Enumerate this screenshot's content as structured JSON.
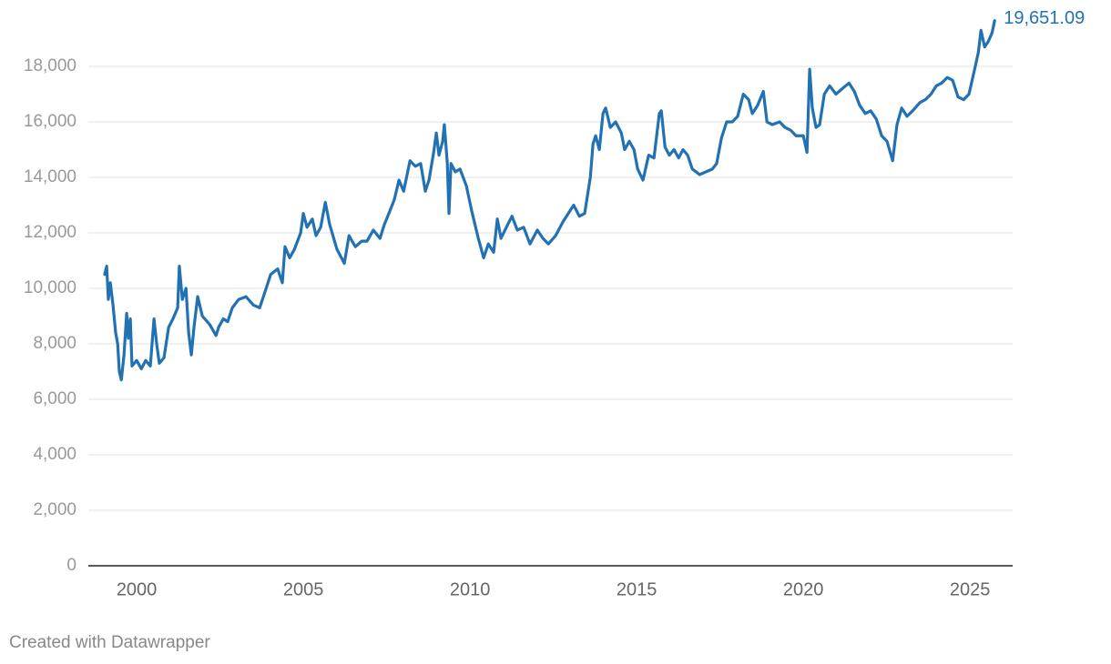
{
  "chart_data": {
    "type": "line",
    "series": [
      {
        "color": "#2271b3",
        "x": [
          1999.04,
          1999.1,
          1999.15,
          1999.21,
          1999.29,
          1999.37,
          1999.43,
          1999.48,
          1999.54,
          1999.62,
          1999.7,
          1999.75,
          1999.81,
          1999.86,
          2000.0,
          2000.14,
          2000.27,
          2000.41,
          2000.52,
          2000.6,
          2000.68,
          2000.82,
          2000.96,
          2001.09,
          2001.23,
          2001.28,
          2001.37,
          2001.48,
          2001.56,
          2001.64,
          2001.72,
          2001.83,
          2001.97,
          2002.19,
          2002.38,
          2002.46,
          2002.6,
          2002.73,
          2002.87,
          2003.06,
          2003.28,
          2003.5,
          2003.69,
          2003.83,
          2004.02,
          2004.23,
          2004.37,
          2004.45,
          2004.59,
          2004.73,
          2004.92,
          2005.0,
          2005.11,
          2005.27,
          2005.38,
          2005.52,
          2005.66,
          2005.79,
          2006.01,
          2006.23,
          2006.37,
          2006.56,
          2006.75,
          2006.91,
          2007.1,
          2007.3,
          2007.43,
          2007.6,
          2007.73,
          2007.87,
          2008.01,
          2008.2,
          2008.36,
          2008.52,
          2008.66,
          2008.77,
          2008.91,
          2008.99,
          2009.07,
          2009.18,
          2009.23,
          2009.32,
          2009.37,
          2009.43,
          2009.56,
          2009.7,
          2009.89,
          2010.05,
          2010.25,
          2010.41,
          2010.55,
          2010.71,
          2010.82,
          2010.93,
          2011.09,
          2011.26,
          2011.42,
          2011.61,
          2011.8,
          2012.02,
          2012.19,
          2012.35,
          2012.57,
          2012.79,
          2012.95,
          2013.11,
          2013.28,
          2013.44,
          2013.61,
          2013.69,
          2013.77,
          2013.88,
          2013.99,
          2014.07,
          2014.21,
          2014.37,
          2014.54,
          2014.64,
          2014.78,
          2014.92,
          2015.03,
          2015.19,
          2015.36,
          2015.52,
          2015.68,
          2015.74,
          2015.85,
          2015.98,
          2016.12,
          2016.26,
          2016.39,
          2016.53,
          2016.67,
          2016.89,
          2017.08,
          2017.27,
          2017.4,
          2017.54,
          2017.7,
          2017.87,
          2018.03,
          2018.2,
          2018.36,
          2018.47,
          2018.63,
          2018.8,
          2018.91,
          2019.07,
          2019.29,
          2019.45,
          2019.62,
          2019.78,
          2020.0,
          2020.11,
          2020.19,
          2020.27,
          2020.38,
          2020.49,
          2020.63,
          2020.79,
          2020.98,
          2021.17,
          2021.37,
          2021.53,
          2021.69,
          2021.86,
          2022.02,
          2022.19,
          2022.35,
          2022.51,
          2022.68,
          2022.81,
          2022.95,
          2023.11,
          2023.28,
          2023.5,
          2023.66,
          2023.83,
          2023.99,
          2024.15,
          2024.32,
          2024.48,
          2024.64,
          2024.81,
          2024.97,
          2025.14,
          2025.25,
          2025.33,
          2025.44,
          2025.55,
          2025.66,
          2025.74
        ],
        "values": [
          10500,
          10800,
          9600,
          10200,
          9400,
          8400,
          8000,
          7000,
          6700,
          7600,
          9100,
          8200,
          8900,
          7200,
          7400,
          7100,
          7400,
          7200,
          8900,
          8000,
          7300,
          7500,
          8600,
          8900,
          9300,
          10800,
          9600,
          10000,
          8400,
          7600,
          8600,
          9700,
          9000,
          8700,
          8300,
          8600,
          8900,
          8800,
          9300,
          9600,
          9700,
          9400,
          9300,
          9800,
          10500,
          10700,
          10200,
          11500,
          11100,
          11400,
          12000,
          12700,
          12200,
          12500,
          11900,
          12200,
          13100,
          12300,
          11400,
          10900,
          11900,
          11500,
          11700,
          11700,
          12100,
          11800,
          12300,
          12800,
          13200,
          13900,
          13500,
          14600,
          14400,
          14500,
          13500,
          13900,
          14900,
          15600,
          14800,
          15300,
          15900,
          14500,
          12700,
          14500,
          14200,
          14300,
          13700,
          12800,
          11800,
          11100,
          11600,
          11300,
          12500,
          11800,
          12200,
          12600,
          12100,
          12200,
          11600,
          12100,
          11800,
          11600,
          11900,
          12400,
          12700,
          13000,
          12600,
          12700,
          14000,
          15200,
          15500,
          15000,
          16300,
          16500,
          15800,
          16000,
          15600,
          15000,
          15300,
          15000,
          14300,
          13900,
          14800,
          14700,
          16300,
          16400,
          15100,
          14800,
          15000,
          14700,
          15000,
          14800,
          14300,
          14100,
          14200,
          14300,
          14500,
          15400,
          16000,
          16000,
          16200,
          17000,
          16800,
          16300,
          16600,
          17100,
          16000,
          15900,
          16000,
          15800,
          15700,
          15500,
          15500,
          14900,
          17900,
          16500,
          15800,
          15900,
          17000,
          17300,
          17000,
          17200,
          17400,
          17100,
          16600,
          16300,
          16400,
          16100,
          15500,
          15300,
          14600,
          15900,
          16500,
          16200,
          16400,
          16700,
          16800,
          17000,
          17300,
          17400,
          17600,
          17500,
          16900,
          16800,
          17000,
          17900,
          18500,
          19300,
          18700,
          18900,
          19200,
          19651.09
        ]
      }
    ],
    "annotations": [
      {
        "label": "19,651.09"
      }
    ],
    "xlim": [
      1998.55,
      2026.28
    ],
    "xticks": [
      2000,
      2005,
      2010,
      2015,
      2020,
      2025
    ],
    "ylim": [
      0,
      20000
    ],
    "yticks": [
      0,
      {
        "value": 2000,
        "label": "2,000"
      },
      {
        "value": 4000,
        "label": "4,000"
      },
      {
        "value": 6000,
        "label": "6,000"
      },
      {
        "value": 8000,
        "label": "8,000"
      },
      {
        "value": 10000,
        "label": "10,000"
      },
      {
        "value": 12000,
        "label": "12,000"
      },
      {
        "value": 14000,
        "label": "14,000"
      },
      {
        "value": 16000,
        "label": "16,000"
      },
      {
        "value": 18000,
        "label": "18,000"
      }
    ],
    "grid": true,
    "footer": "Created with Datawrapper"
  }
}
